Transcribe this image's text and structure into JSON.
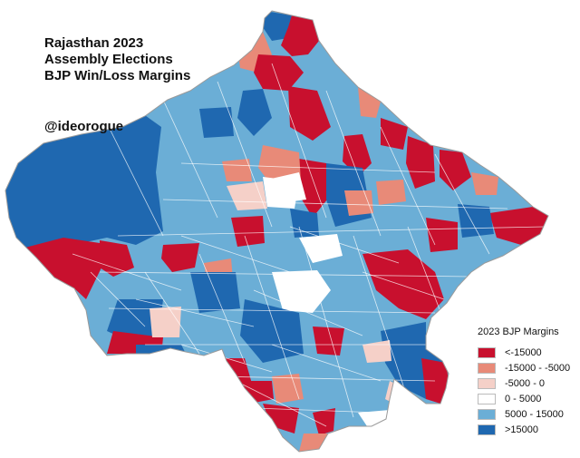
{
  "title_lines": [
    "Rajasthan 2023",
    "Assembly Elections",
    "BJP Win/Loss Margins"
  ],
  "handle": "@ideorogue",
  "legend": {
    "title": "2023 BJP Margins",
    "items": [
      {
        "label": "<-15000",
        "color": "#c8102e"
      },
      {
        "label": "-15000 - -5000",
        "color": "#e88a78"
      },
      {
        "label": "-5000 - 0",
        "color": "#f5d0c8"
      },
      {
        "label": "0 - 5000",
        "color": "#ffffff"
      },
      {
        "label": "5000 - 15000",
        "color": "#6baed6"
      },
      {
        "label": ">15000",
        "color": "#1f68b0"
      }
    ]
  },
  "colors": {
    "strong_loss": "#c8102e",
    "loss": "#e88a78",
    "narrow_loss": "#f5d0c8",
    "narrow_win": "#ffffff",
    "win": "#6baed6",
    "strong_win": "#1f68b0",
    "border": "#ffffff"
  }
}
